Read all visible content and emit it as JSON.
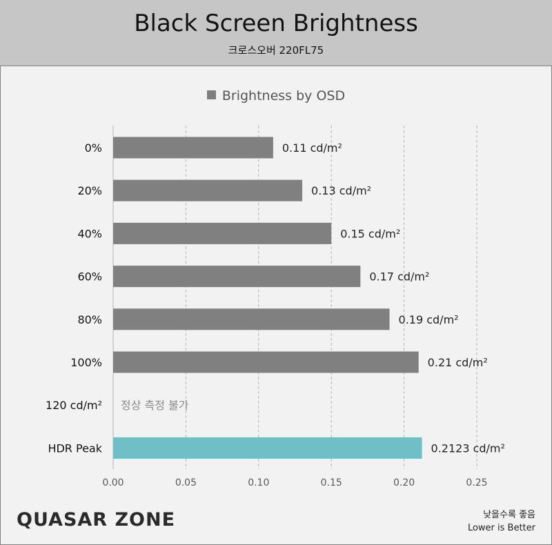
{
  "header": {
    "title": "Black Screen Brightness",
    "subtitle": "크로스오버 220FL75"
  },
  "chart_data": {
    "type": "bar",
    "orientation": "horizontal",
    "legend": [
      "Brightness by OSD"
    ],
    "legend_position": "top",
    "categories": [
      "0%",
      "20%",
      "40%",
      "60%",
      "80%",
      "100%",
      "120 cd/m²",
      "HDR Peak"
    ],
    "values": [
      0.11,
      0.13,
      0.15,
      0.17,
      0.19,
      0.21,
      null,
      0.2123
    ],
    "value_labels": [
      "0.11 cd/m²",
      "0.13 cd/m²",
      "0.15 cd/m²",
      "0.17 cd/m²",
      "0.19 cd/m²",
      "0.21 cd/m²",
      "정상 측정 불가",
      "0.2123 cd/m²"
    ],
    "bar_colors": [
      "#808080",
      "#808080",
      "#808080",
      "#808080",
      "#808080",
      "#808080",
      "#808080",
      "#70bfc6"
    ],
    "xlim": [
      0,
      0.25
    ],
    "xticks": [
      0,
      0.05,
      0.1,
      0.15,
      0.2,
      0.25
    ],
    "xtick_labels": [
      "0.00",
      "0.05",
      "0.10",
      "0.15",
      "0.20",
      "0.25"
    ],
    "grid": "vertical dashed"
  },
  "footer": {
    "logo_text": "QUASAR ZONE",
    "note_line1": "낮을수록 좋음",
    "note_line2": "Lower is Better"
  }
}
